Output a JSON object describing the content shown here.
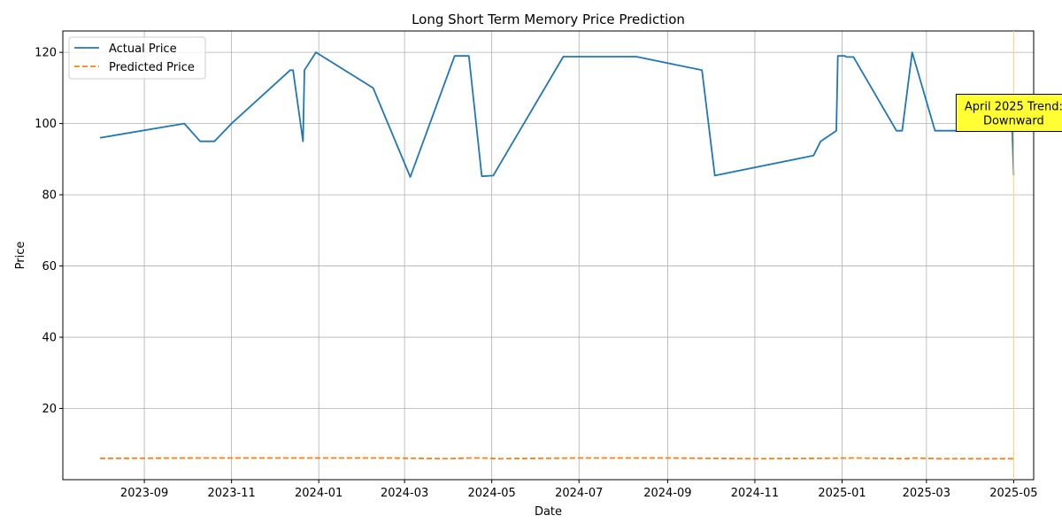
{
  "chart_data": {
    "type": "line",
    "title": "Long Short Term Memory Price Prediction",
    "xlabel": "Date",
    "ylabel": "Price",
    "x_type": "date",
    "xlim": [
      "2023-07-06",
      "2025-05-15"
    ],
    "ylim": [
      0,
      126
    ],
    "x_ticks": [
      "2023-09-01",
      "2023-11-01",
      "2024-01-01",
      "2024-03-01",
      "2024-05-01",
      "2024-07-01",
      "2024-09-01",
      "2024-11-01",
      "2025-01-01",
      "2025-03-01",
      "2025-05-01"
    ],
    "x_tick_labels": [
      "2023-09",
      "2023-11",
      "2024-01",
      "2024-03",
      "2024-05",
      "2024-07",
      "2024-09",
      "2024-11",
      "2025-01",
      "2025-03",
      "2025-05"
    ],
    "y_ticks": [
      20,
      40,
      60,
      80,
      100,
      120
    ],
    "y_tick_labels": [
      "20",
      "40",
      "60",
      "80",
      "100",
      "120"
    ],
    "grid": true,
    "legend_position": "top-left",
    "series": [
      {
        "name": "Actual Price",
        "color": "#1f77b4",
        "style": "solid",
        "x": [
          "2023-08-01",
          "2023-09-29",
          "2023-10-10",
          "2023-10-20",
          "2023-11-01",
          "2023-12-12",
          "2023-12-14",
          "2023-12-21",
          "2023-12-22",
          "2023-12-30",
          "2024-02-08",
          "2024-03-05",
          "2024-04-05",
          "2024-04-15",
          "2024-04-24",
          "2024-05-02",
          "2024-06-20",
          "2024-08-10",
          "2024-09-25",
          "2024-10-04",
          "2024-12-12",
          "2024-12-17",
          "2024-12-28",
          "2024-12-29",
          "2025-01-03",
          "2025-01-04",
          "2025-01-09",
          "2025-02-08",
          "2025-02-12",
          "2025-02-19",
          "2025-03-07",
          "2025-03-14",
          "2025-04-30",
          "2025-05-01"
        ],
        "y": [
          96,
          100,
          95,
          95,
          100,
          115,
          115,
          95,
          115,
          120,
          110,
          85,
          119,
          119,
          85.2,
          85.4,
          118.8,
          118.8,
          115,
          85.4,
          91,
          95,
          98,
          119,
          119,
          118.7,
          118.7,
          98,
          98,
          120,
          98,
          98,
          98,
          85.5
        ]
      },
      {
        "name": "Predicted Price",
        "color": "#ff7f0e",
        "style": "dashed",
        "x": [
          "2023-08-01",
          "2023-10-15",
          "2023-12-30",
          "2024-02-20",
          "2024-04-01",
          "2024-04-15",
          "2024-04-25",
          "2024-05-05",
          "2024-07-01",
          "2024-09-01",
          "2024-11-01",
          "2024-12-15",
          "2025-01-10",
          "2025-02-15",
          "2025-02-20",
          "2025-03-10",
          "2025-05-01"
        ],
        "y": [
          6.0,
          6.1,
          6.1,
          6.1,
          5.9,
          6.1,
          6.1,
          5.9,
          6.1,
          6.1,
          5.9,
          6.0,
          6.1,
          5.9,
          6.1,
          5.9,
          5.9
        ]
      }
    ],
    "annotations": [
      {
        "text_line1": "April 2025 Trend:",
        "text_line2": "Downward",
        "x": "2025-05-01",
        "y": 103,
        "background": "#ffff33",
        "vline_color": "#ffd27f"
      }
    ]
  }
}
